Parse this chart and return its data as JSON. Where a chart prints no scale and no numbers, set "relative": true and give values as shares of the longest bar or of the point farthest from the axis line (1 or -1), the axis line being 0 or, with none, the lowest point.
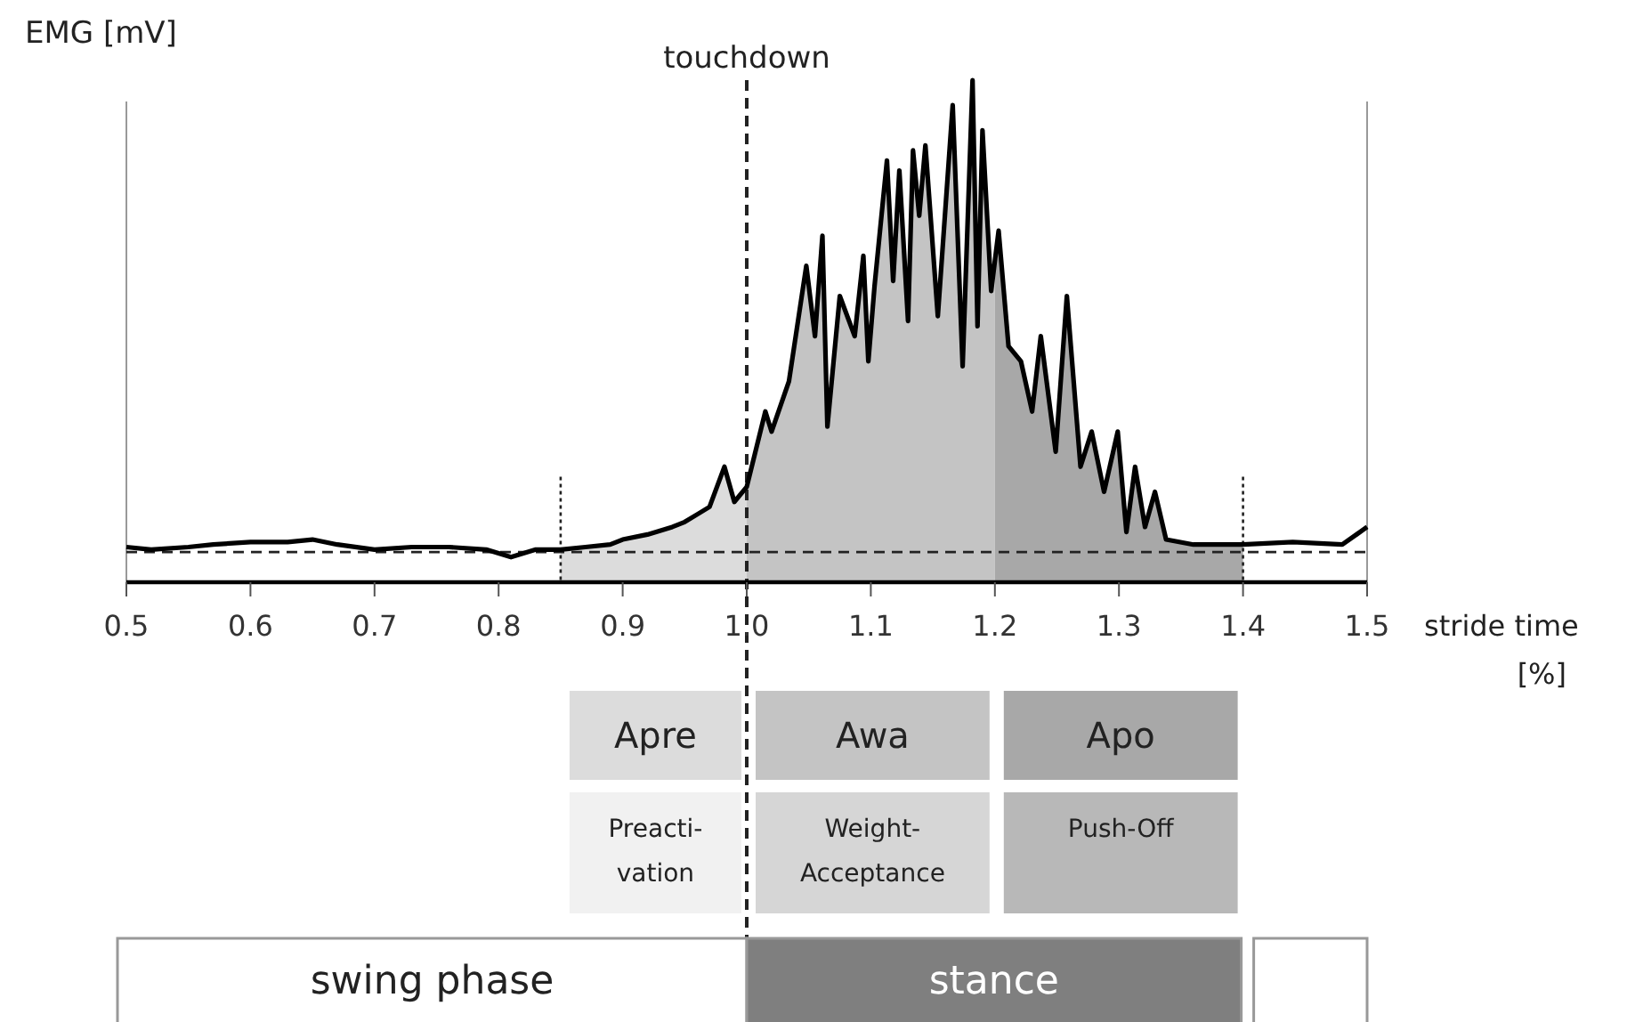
{
  "chart_data": {
    "type": "line",
    "relative": true,
    "xlabel": "stride time [%]",
    "ylabel": "EMG [mV]",
    "xlim": [
      0.5,
      1.5
    ],
    "xticks": [
      0.5,
      0.6,
      0.7,
      0.8,
      0.9,
      {
        "value": 1,
        "label": "1.0"
      },
      1.1,
      1.2,
      1.3,
      1.4,
      1.5
    ],
    "series": [
      {
        "color": "#000000",
        "x": [
          0.5,
          0.52,
          0.55,
          0.57,
          0.6,
          0.63,
          0.65,
          0.67,
          0.7,
          0.73,
          0.76,
          0.79,
          0.81,
          0.83,
          0.85,
          0.87,
          0.89,
          0.9,
          0.92,
          0.94,
          0.95,
          0.96,
          0.97,
          0.982,
          0.99,
          1.0,
          1.015,
          1.02,
          1.034,
          1.048,
          1.055,
          1.061,
          1.065,
          1.075,
          1.087,
          1.094,
          1.098,
          1.103,
          1.113,
          1.118,
          1.123,
          1.13,
          1.134,
          1.139,
          1.144,
          1.154,
          1.166,
          1.174,
          1.182,
          1.186,
          1.19,
          1.197,
          1.203,
          1.211,
          1.221,
          1.23,
          1.237,
          1.249,
          1.258,
          1.269,
          1.278,
          1.288,
          1.299,
          1.306,
          1.313,
          1.321,
          1.329,
          1.338,
          1.36,
          1.4,
          1.44,
          1.48,
          1.5
        ],
        "values": [
          0.07,
          0.065,
          0.07,
          0.075,
          0.08,
          0.08,
          0.085,
          0.075,
          0.065,
          0.07,
          0.07,
          0.065,
          0.05,
          0.065,
          0.065,
          0.07,
          0.075,
          0.085,
          0.095,
          0.11,
          0.12,
          0.135,
          0.15,
          0.23,
          0.16,
          0.19,
          0.34,
          0.3,
          0.4,
          0.63,
          0.49,
          0.69,
          0.31,
          0.57,
          0.49,
          0.65,
          0.44,
          0.59,
          0.84,
          0.6,
          0.82,
          0.52,
          0.86,
          0.73,
          0.87,
          0.53,
          0.95,
          0.43,
          1,
          0.51,
          0.9,
          0.58,
          0.7,
          0.47,
          0.44,
          0.34,
          0.49,
          0.26,
          0.57,
          0.23,
          0.3,
          0.18,
          0.3,
          0.1,
          0.23,
          0.11,
          0.18,
          0.085,
          0.075,
          0.075,
          0.08,
          0.075,
          0.11
        ]
      }
    ],
    "bands": [
      {
        "axis": "x",
        "from": 0.85,
        "to": 1.0,
        "color": "#dcdcdc"
      },
      {
        "axis": "x",
        "from": 1.0,
        "to": 1.2,
        "color": "#c4c4c4"
      },
      {
        "axis": "x",
        "from": 1.2,
        "to": 1.4,
        "color": "#a8a8a8"
      }
    ],
    "ref_lines": [
      {
        "axis": "x",
        "value": 1.0,
        "label": "touchdown",
        "line_style": "dashed"
      },
      {
        "axis": "x",
        "value": 0.85,
        "line_style": "dotted"
      },
      {
        "axis": "x",
        "value": 1.4,
        "line_style": "dotted"
      },
      {
        "axis": "y",
        "value": 0.06,
        "line_style": "dashed"
      }
    ],
    "annotations": [
      "Apre",
      "Preacti-vation",
      "Awa",
      "Weight-Acceptance",
      "Apo",
      "Push-Off",
      "swing phase",
      "stance"
    ]
  }
}
